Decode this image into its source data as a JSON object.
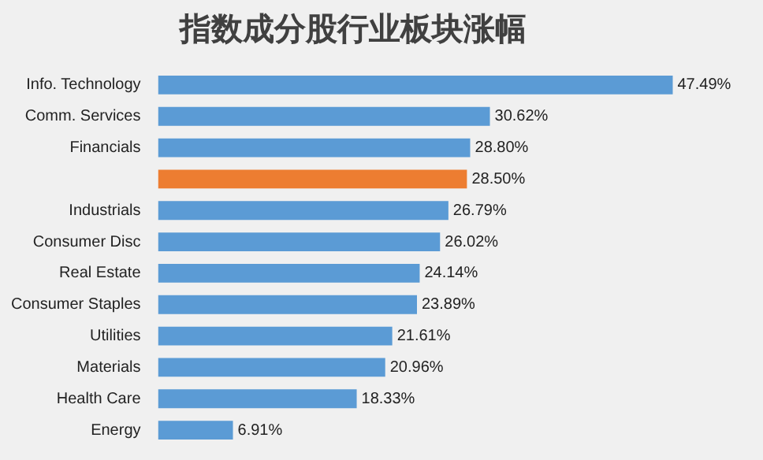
{
  "chart_data": {
    "type": "bar",
    "orientation": "horizontal",
    "title": "指数成分股行业板块涨幅",
    "categories": [
      "Info. Technology",
      "Comm. Services",
      "Financials",
      null,
      "Industrials",
      "Consumer Disc",
      "Real Estate",
      "Consumer Staples",
      "Utilities",
      "Materials",
      "Health Care",
      "Energy"
    ],
    "values": [
      47.49,
      30.62,
      28.8,
      28.5,
      26.79,
      26.02,
      24.14,
      23.89,
      21.61,
      20.96,
      18.33,
      6.91
    ],
    "value_labels": [
      "47.49%",
      "30.62%",
      "28.80%",
      "28.50%",
      "26.79%",
      "26.02%",
      "24.14%",
      "23.89%",
      "21.61%",
      "20.96%",
      "18.33%",
      "6.91%"
    ],
    "colors": [
      "#5b9bd5",
      "#5b9bd5",
      "#5b9bd5",
      "#ed7d31",
      "#5b9bd5",
      "#5b9bd5",
      "#5b9bd5",
      "#5b9bd5",
      "#5b9bd5",
      "#5b9bd5",
      "#5b9bd5",
      "#5b9bd5"
    ],
    "grid": false,
    "legend": false
  }
}
